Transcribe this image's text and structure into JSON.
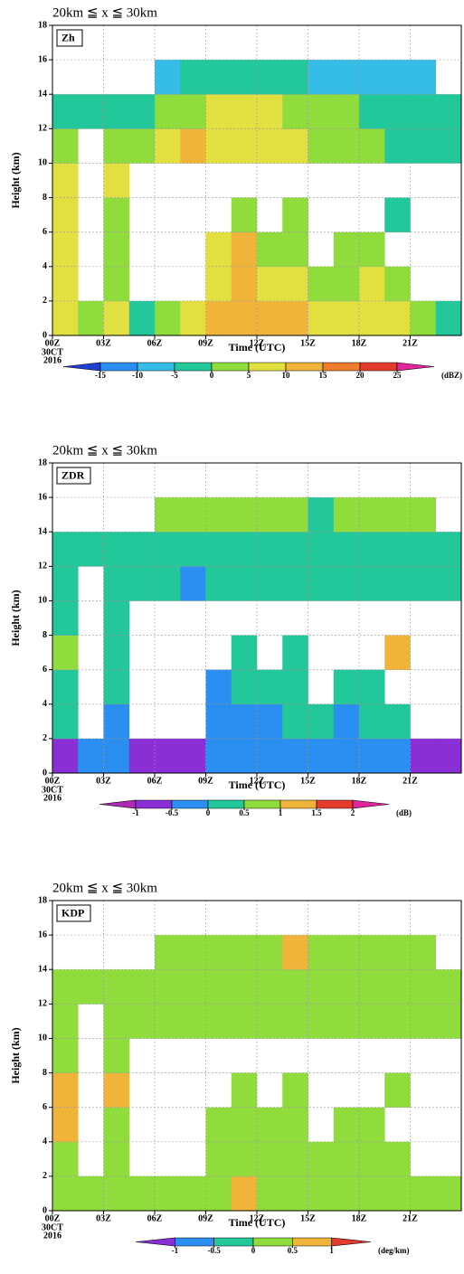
{
  "chart_data": [
    {
      "type": "heatmap",
      "title": "20km ≦ x ≦ 30km",
      "panel_label": "Zh",
      "x_label": "Time (UTC)",
      "y_label": "Height (km)",
      "xlim": [
        0,
        24
      ],
      "ylim": [
        0,
        18
      ],
      "xticks": [
        {
          "value": 0,
          "label": "00Z"
        },
        {
          "value": 3,
          "label": "03Z"
        },
        {
          "value": 6,
          "label": "06Z"
        },
        {
          "value": 9,
          "label": "09Z"
        },
        {
          "value": 12,
          "label": "12Z"
        },
        {
          "value": 15,
          "label": "15Z"
        },
        {
          "value": 18,
          "label": "18Z"
        },
        {
          "value": 21,
          "label": "21Z"
        }
      ],
      "date_lines": [
        "30CT",
        "2016"
      ],
      "yticks": [
        0,
        2,
        4,
        6,
        8,
        10,
        12,
        14,
        16,
        18
      ],
      "grid": true,
      "x_bins": [
        0,
        1.5,
        3,
        4.5,
        6,
        7.5,
        9,
        10.5,
        12,
        13.5,
        15,
        16.5,
        18,
        19.5,
        21,
        22.5,
        24
      ],
      "y_bins": [
        0,
        2,
        4,
        6,
        8,
        10,
        12,
        14,
        16,
        18
      ],
      "z": [
        [
          5,
          0,
          5,
          -5,
          0,
          5,
          10,
          10,
          10,
          10,
          5,
          5,
          5,
          5,
          0,
          -5
        ],
        [
          5,
          null,
          0,
          null,
          null,
          null,
          5,
          10,
          5,
          5,
          0,
          0,
          5,
          0,
          null,
          null
        ],
        [
          5,
          null,
          0,
          null,
          null,
          null,
          5,
          10,
          0,
          0,
          null,
          0,
          0,
          null,
          null,
          null
        ],
        [
          5,
          null,
          0,
          null,
          null,
          null,
          null,
          0,
          null,
          0,
          null,
          null,
          null,
          -5,
          null,
          null
        ],
        [
          5,
          null,
          5,
          null,
          null,
          null,
          null,
          null,
          null,
          null,
          null,
          null,
          null,
          null,
          null,
          null
        ],
        [
          0,
          null,
          0,
          0,
          5,
          10,
          5,
          5,
          5,
          5,
          0,
          0,
          0,
          -5,
          -5,
          -5
        ],
        [
          -5,
          -5,
          -5,
          -5,
          0,
          0,
          5,
          5,
          5,
          0,
          0,
          0,
          -5,
          -5,
          -5,
          -5
        ],
        [
          null,
          null,
          null,
          null,
          -10,
          -5,
          -5,
          -5,
          -5,
          -5,
          -10,
          -10,
          -10,
          -10,
          -10,
          null
        ],
        [
          null,
          null,
          null,
          null,
          null,
          null,
          null,
          null,
          null,
          null,
          null,
          null,
          null,
          null,
          null,
          null
        ]
      ],
      "colorbar": {
        "levels": [
          -15,
          -10,
          -5,
          0,
          5,
          10,
          15,
          20,
          25
        ],
        "colors": [
          "#1f3fd6",
          "#2a8ff0",
          "#35bde8",
          "#22c79a",
          "#8fdc3c",
          "#e2e040",
          "#f0b43a",
          "#ef7d2c",
          "#e53a2e",
          "#e0269a"
        ],
        "unit": "(dBZ)"
      }
    },
    {
      "type": "heatmap",
      "title": "20km ≦ x ≦ 30km",
      "panel_label": "ZDR",
      "x_label": "Time (UTC)",
      "y_label": "Height (km)",
      "xlim": [
        0,
        24
      ],
      "ylim": [
        0,
        18
      ],
      "xticks": [
        {
          "value": 0,
          "label": "00Z"
        },
        {
          "value": 3,
          "label": "03Z"
        },
        {
          "value": 6,
          "label": "06Z"
        },
        {
          "value": 9,
          "label": "09Z"
        },
        {
          "value": 12,
          "label": "12Z"
        },
        {
          "value": 15,
          "label": "15Z"
        },
        {
          "value": 18,
          "label": "18Z"
        },
        {
          "value": 21,
          "label": "21Z"
        }
      ],
      "date_lines": [
        "30CT",
        "2016"
      ],
      "yticks": [
        0,
        2,
        4,
        6,
        8,
        10,
        12,
        14,
        16,
        18
      ],
      "grid": true,
      "x_bins": [
        0,
        1.5,
        3,
        4.5,
        6,
        7.5,
        9,
        10.5,
        12,
        13.5,
        15,
        16.5,
        18,
        19.5,
        21,
        22.5,
        24
      ],
      "y_bins": [
        0,
        2,
        4,
        6,
        8,
        10,
        12,
        14,
        16,
        18
      ],
      "z": [
        [
          -0.75,
          -0.25,
          -0.25,
          -0.75,
          -0.75,
          -0.75,
          -0.25,
          -0.25,
          -0.25,
          -0.25,
          -0.25,
          -0.25,
          -0.25,
          -0.25,
          -0.75,
          -0.75
        ],
        [
          0.25,
          null,
          -0.25,
          null,
          null,
          null,
          -0.25,
          -0.25,
          -0.25,
          0.25,
          0.25,
          -0.25,
          0.25,
          0.25,
          null,
          null
        ],
        [
          0.25,
          null,
          0.25,
          null,
          null,
          null,
          -0.25,
          0.25,
          0.25,
          0.25,
          null,
          0.25,
          0.25,
          null,
          null,
          null
        ],
        [
          0.75,
          null,
          0.25,
          null,
          null,
          null,
          null,
          0.25,
          null,
          0.25,
          null,
          null,
          null,
          1.25,
          null,
          null
        ],
        [
          0.25,
          null,
          0.25,
          null,
          null,
          null,
          null,
          null,
          null,
          null,
          null,
          null,
          null,
          null,
          null,
          null
        ],
        [
          0.25,
          null,
          0.25,
          0.25,
          0.25,
          -0.25,
          0.25,
          0.25,
          0.25,
          0.25,
          0.25,
          0.25,
          0.25,
          0.25,
          0.25,
          0.25
        ],
        [
          0.25,
          0.25,
          0.25,
          0.25,
          0.25,
          0.25,
          0.25,
          0.25,
          0.25,
          0.25,
          0.25,
          0.25,
          0.25,
          0.25,
          0.25,
          0.25
        ],
        [
          null,
          null,
          null,
          null,
          0.75,
          0.75,
          0.75,
          0.75,
          0.75,
          0.75,
          0.25,
          0.75,
          0.75,
          0.75,
          0.75,
          null
        ],
        [
          null,
          null,
          null,
          null,
          null,
          null,
          null,
          null,
          null,
          null,
          null,
          null,
          null,
          null,
          null,
          null
        ]
      ],
      "colorbar": {
        "levels": [
          -1,
          -0.5,
          0,
          0.5,
          1,
          1.5,
          2
        ],
        "colors": [
          "#b02ab8",
          "#8a2fd6",
          "#2a8ff0",
          "#22c79a",
          "#8fdc3c",
          "#f0b43a",
          "#e53a2e",
          "#e0269a"
        ],
        "unit": "(dB)"
      }
    },
    {
      "type": "heatmap",
      "title": "20km ≦ x ≦ 30km",
      "panel_label": "KDP",
      "x_label": "Time (UTC)",
      "y_label": "Height (km)",
      "xlim": [
        0,
        24
      ],
      "ylim": [
        0,
        18
      ],
      "xticks": [
        {
          "value": 0,
          "label": "00Z"
        },
        {
          "value": 3,
          "label": "03Z"
        },
        {
          "value": 6,
          "label": "06Z"
        },
        {
          "value": 9,
          "label": "09Z"
        },
        {
          "value": 12,
          "label": "12Z"
        },
        {
          "value": 15,
          "label": "15Z"
        },
        {
          "value": 18,
          "label": "18Z"
        },
        {
          "value": 21,
          "label": "21Z"
        }
      ],
      "date_lines": [
        "30CT",
        "2016"
      ],
      "yticks": [
        0,
        2,
        4,
        6,
        8,
        10,
        12,
        14,
        16,
        18
      ],
      "grid": true,
      "x_bins": [
        0,
        1.5,
        3,
        4.5,
        6,
        7.5,
        9,
        10.5,
        12,
        13.5,
        15,
        16.5,
        18,
        19.5,
        21,
        22.5,
        24
      ],
      "y_bins": [
        0,
        2,
        4,
        6,
        8,
        10,
        12,
        14,
        16,
        18
      ],
      "z": [
        [
          0.25,
          0.25,
          0.25,
          0.25,
          0.25,
          0.25,
          0.25,
          0.75,
          0.25,
          0.25,
          0.25,
          0.25,
          0.25,
          0.25,
          0.25,
          0.25
        ],
        [
          0.25,
          null,
          0.25,
          null,
          null,
          null,
          0.25,
          0.25,
          0.25,
          0.25,
          0.25,
          0.25,
          0.25,
          0.25,
          null,
          null
        ],
        [
          0.75,
          null,
          0.25,
          null,
          null,
          null,
          0.25,
          0.25,
          0.25,
          0.25,
          null,
          0.25,
          0.25,
          null,
          null,
          null
        ],
        [
          0.75,
          null,
          0.75,
          null,
          null,
          null,
          null,
          0.25,
          null,
          0.25,
          null,
          null,
          null,
          0.25,
          null,
          null
        ],
        [
          0.25,
          null,
          0.25,
          null,
          null,
          null,
          null,
          null,
          null,
          null,
          null,
          null,
          null,
          null,
          null,
          null
        ],
        [
          0.25,
          null,
          0.25,
          0.25,
          0.25,
          0.25,
          0.25,
          0.25,
          0.25,
          0.25,
          0.25,
          0.25,
          0.25,
          0.25,
          0.25,
          0.25
        ],
        [
          0.25,
          0.25,
          0.25,
          0.25,
          0.25,
          0.25,
          0.25,
          0.25,
          0.25,
          0.25,
          0.25,
          0.25,
          0.25,
          0.25,
          0.25,
          0.25
        ],
        [
          null,
          null,
          null,
          null,
          0.25,
          0.25,
          0.25,
          0.25,
          0.25,
          0.75,
          0.25,
          0.25,
          0.25,
          0.25,
          0.25,
          null
        ],
        [
          null,
          null,
          null,
          null,
          null,
          null,
          null,
          null,
          null,
          null,
          null,
          null,
          null,
          null,
          null,
          null
        ]
      ],
      "colorbar": {
        "levels": [
          -1,
          -0.5,
          0,
          0.5,
          1
        ],
        "colors": [
          "#8a2fd6",
          "#2a8ff0",
          "#22c79a",
          "#8fdc3c",
          "#f0b43a",
          "#e53a2e"
        ],
        "unit": "(deg/km)"
      }
    }
  ]
}
